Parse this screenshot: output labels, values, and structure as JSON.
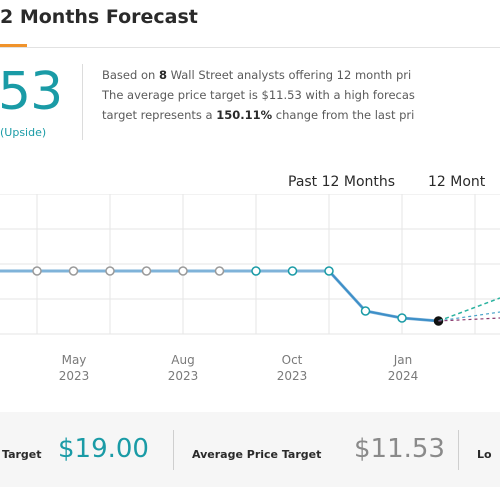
{
  "header": {
    "title": "2 Months Forecast"
  },
  "price_target": {
    "value": "53",
    "upside_label": "(Upside)"
  },
  "summary": {
    "l1_a": "Based on ",
    "l1_b": "8",
    "l1_c": " Wall Street analysts offering 12 month pri",
    "l2": "The average price target is $11.53 with a high forecas",
    "l3_a": "target represents a ",
    "l3_b": "150.11%",
    "l3_c": " change from the last pri"
  },
  "range_tabs": {
    "past": "Past 12 Months",
    "next": "12 Mont"
  },
  "colors": {
    "accent": "#1a9ba6",
    "underline": "#f0932b",
    "grey_value": "#8a8a8a"
  },
  "chart_data": {
    "type": "line",
    "x_tick_labels": [
      {
        "month": "May",
        "year": "2023"
      },
      {
        "month": "Aug",
        "year": "2023"
      },
      {
        "month": "Oct",
        "year": "2023"
      },
      {
        "month": "Jan",
        "year": "2024"
      }
    ],
    "series": [
      {
        "values": [
          {
            "x": "2023-02",
            "y": 17.5
          },
          {
            "x": "2023-03",
            "y": 17.5
          },
          {
            "x": "2023-04",
            "y": 17.5
          },
          {
            "x": "2023-05",
            "y": 17.5
          },
          {
            "x": "2023-06",
            "y": 17.5
          },
          {
            "x": "2023-07",
            "y": 17.5
          },
          {
            "x": "2023-08",
            "y": 17.5
          },
          {
            "x": "2023-09",
            "y": 17.5
          },
          {
            "x": "2023-10",
            "y": 17.5
          },
          {
            "x": "2023-11",
            "y": 12.2
          },
          {
            "x": "2023-12",
            "y": 11.4
          },
          {
            "x": "2024-01",
            "y": 11.0
          }
        ]
      }
    ],
    "forecast": {
      "high": 19.0,
      "average": 11.53
    },
    "grid": true
  },
  "stats": {
    "high_label": "Target",
    "high_value": "$19.00",
    "avg_label": "Average Price Target",
    "avg_value": "$11.53",
    "low_label": "Lo"
  }
}
